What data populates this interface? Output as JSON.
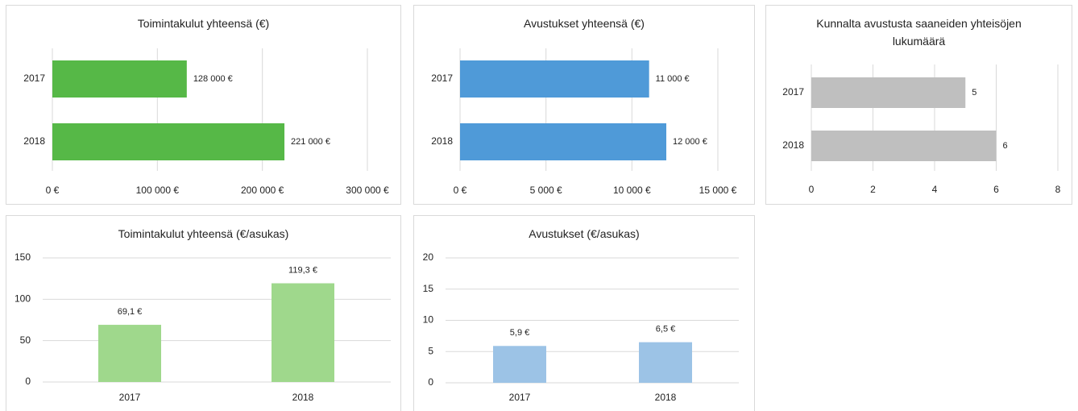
{
  "chart_data": [
    {
      "type": "barh",
      "title": "Toimintakulut yhteensä (€)",
      "categories": [
        "2017",
        "2018"
      ],
      "values": [
        128000,
        221000
      ],
      "value_labels": [
        "128 000 €",
        "221 000 €"
      ],
      "color": "#56b847",
      "xlim": [
        0,
        300000
      ],
      "xticks": [
        {
          "value": 0,
          "label": "0 €"
        },
        {
          "value": 100000,
          "label": "100 000 €"
        },
        {
          "value": 200000,
          "label": "200 000 €"
        },
        {
          "value": 300000,
          "label": "300 000 €"
        }
      ],
      "grid": true
    },
    {
      "type": "barh",
      "title": "Avustukset yhteensä (€)",
      "categories": [
        "2017",
        "2018"
      ],
      "values": [
        11000,
        12000
      ],
      "value_labels": [
        "11 000 €",
        "12 000 €"
      ],
      "color": "#4f9ad8",
      "xlim": [
        0,
        15000
      ],
      "xticks": [
        {
          "value": 0,
          "label": "0 €"
        },
        {
          "value": 5000,
          "label": "5 000 €"
        },
        {
          "value": 10000,
          "label": "10 000 €"
        },
        {
          "value": 15000,
          "label": "15 000 €"
        }
      ],
      "grid": true
    },
    {
      "type": "barh",
      "title": "Kunnalta avustusta saaneiden yhteisöjen lukumäärä",
      "categories": [
        "2017",
        "2018"
      ],
      "values": [
        5,
        6
      ],
      "color": "#bfbfbf",
      "xlim": [
        0,
        8
      ],
      "xticks": [
        0,
        2,
        4,
        6,
        8
      ],
      "grid": true
    },
    {
      "type": "bar",
      "title": "Toimintakulut yhteensä (€/asukas)",
      "categories": [
        "2017",
        "2018"
      ],
      "values": [
        69.1,
        119.3
      ],
      "value_labels": [
        "69,1 €",
        "119,3 €"
      ],
      "color": "#9fd88c",
      "ylim": [
        0,
        150
      ],
      "yticks": [
        0,
        50,
        100,
        150
      ],
      "grid": true
    },
    {
      "type": "bar",
      "title": "Avustukset (€/asukas)",
      "categories": [
        "2017",
        "2018"
      ],
      "values": [
        5.9,
        6.5
      ],
      "value_labels": [
        "5,9 €",
        "6,5 €"
      ],
      "color": "#9cc3e6",
      "ylim": [
        0,
        20
      ],
      "yticks": [
        0,
        5,
        10,
        15,
        20
      ],
      "grid": true
    }
  ]
}
